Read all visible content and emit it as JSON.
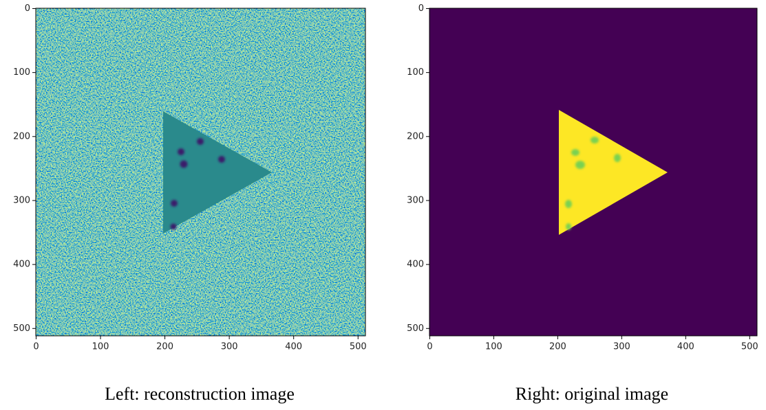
{
  "chart_data": [
    {
      "type": "image",
      "caption": "Left: reconstruction image",
      "xlim": [
        -0.5,
        511.5
      ],
      "ylim": [
        511.5,
        -0.5
      ],
      "xticks": [
        0,
        100,
        200,
        300,
        400,
        500
      ],
      "yticks": [
        0,
        100,
        200,
        300,
        400,
        500
      ]
    },
    {
      "type": "image",
      "caption": "Right: original image",
      "xlim": [
        -0.5,
        511.5
      ],
      "ylim": [
        511.5,
        -0.5
      ],
      "xticks": [
        0,
        100,
        200,
        300,
        400,
        500
      ],
      "yticks": [
        0,
        100,
        200,
        300,
        400,
        500
      ]
    }
  ]
}
